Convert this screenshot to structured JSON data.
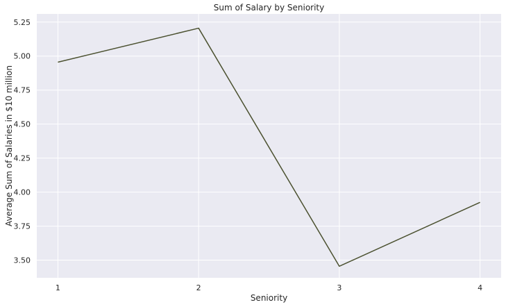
{
  "chart_data": {
    "type": "line",
    "title": "Sum of Salary by Seniority",
    "xlabel": "Seniority",
    "ylabel": "Average Sum of Salaries in $10 million",
    "x": [
      1,
      2,
      3,
      4
    ],
    "x_tick_labels": [
      "1",
      "2",
      "3",
      "4"
    ],
    "y_ticks": [
      3.5,
      3.75,
      4.0,
      4.25,
      4.5,
      4.75,
      5.0,
      5.25
    ],
    "y_tick_labels": [
      "3.50",
      "3.75",
      "4.00",
      "4.25",
      "4.50",
      "4.75",
      "5.00",
      "5.25"
    ],
    "xlim": [
      0.85,
      4.15
    ],
    "ylim": [
      3.37,
      5.31
    ],
    "series": [
      {
        "values": [
          4.955,
          5.205,
          3.455,
          3.925
        ]
      }
    ],
    "grid": true,
    "colors": {
      "background": "#eaeaf2",
      "grid": "#ffffff",
      "line": "#4b5130"
    }
  }
}
